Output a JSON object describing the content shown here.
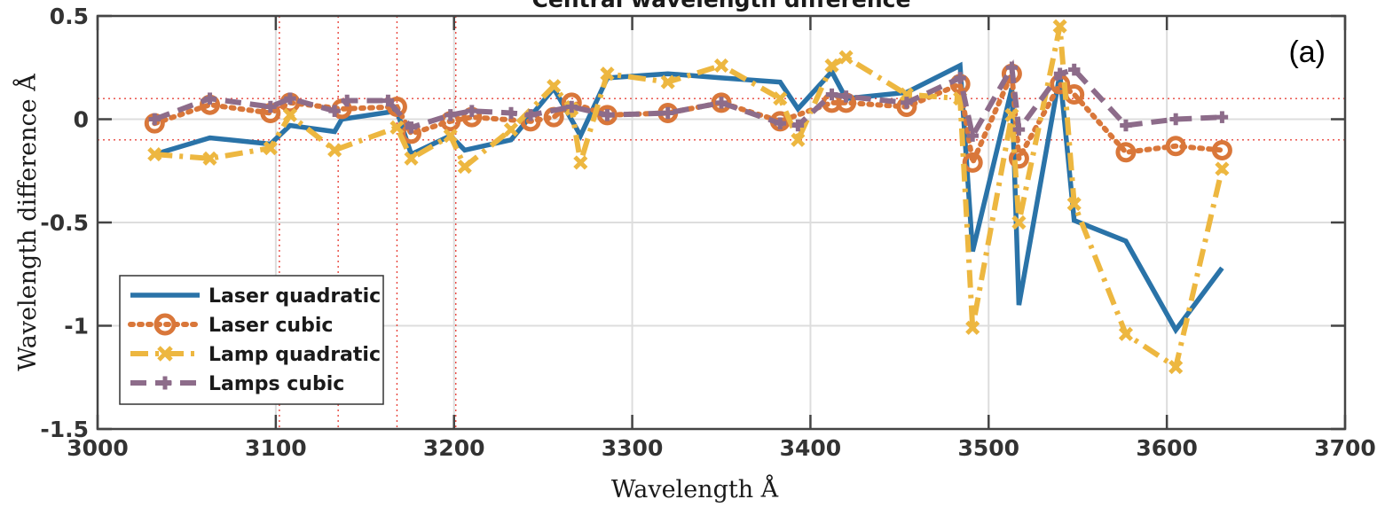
{
  "chart_data": {
    "type": "line",
    "title": "Central wavelength difference",
    "panel_label": "(a)",
    "xlabel": "Wavelength Å",
    "ylabel": "Wavelength difference Å",
    "xlim": [
      3000,
      3700
    ],
    "ylim": [
      -1.5,
      0.5
    ],
    "xticks": [
      3000,
      3100,
      3200,
      3300,
      3400,
      3500,
      3600,
      3700
    ],
    "yticks": [
      -1.5,
      -1,
      -0.5,
      0,
      0.5
    ],
    "ytick_labels": [
      "-1.5",
      "-1",
      "-0.5",
      "0",
      "0.5"
    ],
    "grid": true,
    "legend_position": "lower-left",
    "reference_hlines": [
      0.1,
      -0.1
    ],
    "reference_vlines": [
      3102,
      3135,
      3168,
      3201
    ],
    "series": [
      {
        "name": "Laser quadratic",
        "color": "#2a73a8",
        "style": "solid",
        "marker": "none",
        "x": [
          3032,
          3063,
          3097,
          3108,
          3133,
          3137,
          3168,
          3176,
          3198,
          3206,
          3232,
          3256,
          3271,
          3286,
          3320,
          3350,
          3383,
          3393,
          3412,
          3420,
          3454,
          3484,
          3491,
          3513,
          3517,
          3540,
          3548,
          3577,
          3605,
          3631
        ],
        "y": [
          -0.17,
          -0.09,
          -0.12,
          -0.03,
          -0.06,
          0.0,
          0.04,
          -0.17,
          -0.08,
          -0.15,
          -0.1,
          0.15,
          -0.08,
          0.2,
          0.22,
          0.2,
          0.18,
          0.05,
          0.23,
          0.1,
          0.13,
          0.26,
          -0.64,
          0.15,
          -0.9,
          0.22,
          -0.49,
          -0.59,
          -1.02,
          -0.72
        ]
      },
      {
        "name": "Laser cubic",
        "color": "#d9773a",
        "style": "dotted",
        "marker": "circle",
        "x": [
          3032,
          3063,
          3097,
          3108,
          3137,
          3168,
          3176,
          3198,
          3210,
          3243,
          3256,
          3266,
          3286,
          3320,
          3350,
          3383,
          3412,
          3420,
          3454,
          3484,
          3491,
          3513,
          3517,
          3540,
          3548,
          3577,
          3605,
          3631
        ],
        "y": [
          -0.02,
          0.07,
          0.03,
          0.08,
          0.05,
          0.06,
          -0.07,
          -0.01,
          0.01,
          -0.01,
          0.01,
          0.08,
          0.02,
          0.03,
          0.08,
          -0.01,
          0.08,
          0.08,
          0.06,
          0.17,
          -0.21,
          0.22,
          -0.19,
          0.17,
          0.12,
          -0.16,
          -0.13,
          -0.15
        ]
      },
      {
        "name": "Lamp quadratic",
        "color": "#edb740",
        "style": "dashdot",
        "marker": "x",
        "x": [
          3032,
          3063,
          3097,
          3108,
          3133,
          3168,
          3176,
          3198,
          3206,
          3232,
          3256,
          3266,
          3271,
          3286,
          3320,
          3350,
          3383,
          3393,
          3412,
          3420,
          3454,
          3484,
          3491,
          3513,
          3517,
          3540,
          3548,
          3577,
          3605,
          3631
        ],
        "y": [
          -0.17,
          -0.19,
          -0.14,
          0.02,
          -0.15,
          -0.04,
          -0.19,
          -0.08,
          -0.23,
          -0.05,
          0.16,
          0.05,
          -0.21,
          0.22,
          0.18,
          0.26,
          0.1,
          -0.1,
          0.26,
          0.3,
          0.12,
          0.1,
          -1.01,
          0.02,
          -0.5,
          0.45,
          -0.41,
          -1.04,
          -1.2,
          -0.24
        ]
      },
      {
        "name": "Lamps cubic",
        "color": "#8d6c8a",
        "style": "dashed",
        "marker": "plus",
        "x": [
          3032,
          3063,
          3097,
          3108,
          3133,
          3140,
          3163,
          3176,
          3198,
          3210,
          3232,
          3243,
          3266,
          3286,
          3320,
          3350,
          3383,
          3393,
          3412,
          3420,
          3454,
          3484,
          3491,
          3513,
          3517,
          3540,
          3548,
          3577,
          3605,
          3631
        ],
        "y": [
          0.0,
          0.1,
          0.06,
          0.1,
          0.04,
          0.09,
          0.09,
          -0.04,
          0.02,
          0.04,
          0.03,
          0.02,
          0.06,
          0.02,
          0.03,
          0.08,
          -0.02,
          -0.03,
          0.12,
          0.11,
          0.08,
          0.2,
          -0.08,
          0.25,
          -0.05,
          0.22,
          0.24,
          -0.03,
          0.0,
          0.01
        ]
      }
    ]
  }
}
